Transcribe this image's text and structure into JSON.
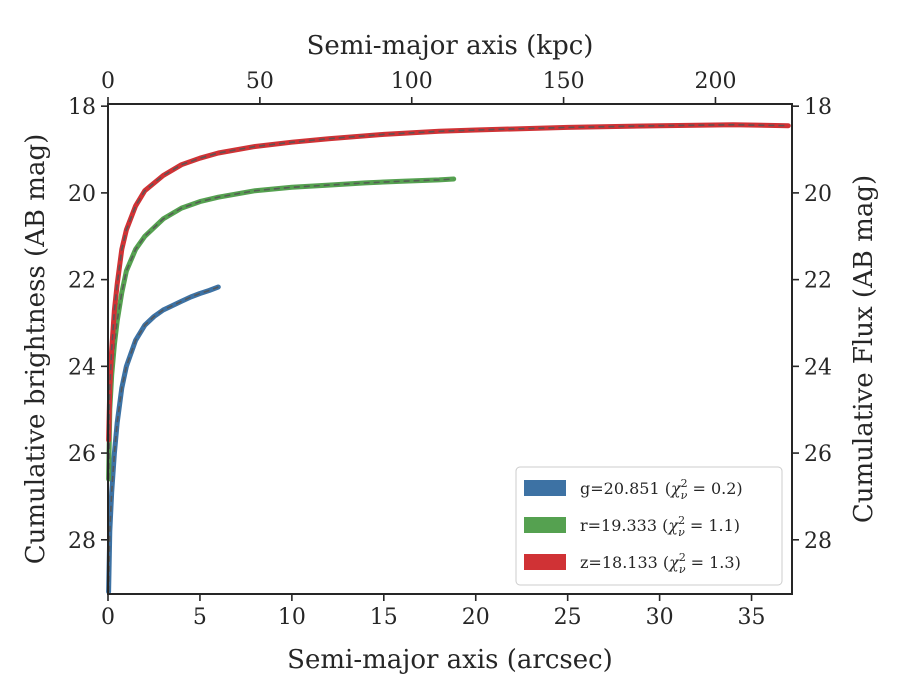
{
  "chart_data": {
    "type": "line",
    "xlabel": "Semi-major axis (arcsec)",
    "ylabel": "Cumulative brightness (AB mag)",
    "top_xlabel": "Semi-major axis (kpc)",
    "right_ylabel": "Cumulative Flux (AB mag)",
    "xlim": [
      0,
      37.2
    ],
    "ylim": [
      29.25,
      17.95
    ],
    "y_inverted": true,
    "top_xlim": [
      0,
      225.2
    ],
    "xticks": [
      0,
      5,
      10,
      15,
      20,
      25,
      30,
      35
    ],
    "yticks": [
      18,
      20,
      22,
      24,
      26,
      28
    ],
    "top_xticks": [
      0,
      50,
      100,
      150,
      200
    ],
    "grid": false,
    "legend_position": "lower-right",
    "series": [
      {
        "name": "g=20.851",
        "chi_label": "χ",
        "chi_sup": "2",
        "chi_sub": "ν",
        "chi_value": " = 0.2)",
        "color": "#3d72a4",
        "x": [
          0.03,
          0.1,
          0.2,
          0.35,
          0.5,
          0.75,
          1.0,
          1.5,
          2.0,
          2.5,
          3.0,
          3.5,
          4.0,
          4.5,
          5.0,
          5.5,
          6.0
        ],
        "y": [
          29.2,
          27.8,
          26.9,
          26.0,
          25.3,
          24.5,
          24.0,
          23.4,
          23.05,
          22.85,
          22.7,
          22.6,
          22.5,
          22.4,
          22.32,
          22.25,
          22.17
        ]
      },
      {
        "name": "r=19.333",
        "chi_label": "χ",
        "chi_sup": "2",
        "chi_sub": "ν",
        "chi_value": " = 1.1)",
        "color": "#55a150",
        "x": [
          0.03,
          0.1,
          0.2,
          0.35,
          0.5,
          0.75,
          1.0,
          1.5,
          2.0,
          3.0,
          4.0,
          5.0,
          6.0,
          8.0,
          10.0,
          12.0,
          14.0,
          16.0,
          18.0,
          18.8
        ],
        "y": [
          26.6,
          25.0,
          24.2,
          23.5,
          22.95,
          22.3,
          21.8,
          21.3,
          21.0,
          20.6,
          20.35,
          20.2,
          20.1,
          19.95,
          19.87,
          19.82,
          19.77,
          19.73,
          19.7,
          19.68
        ]
      },
      {
        "name": "z=18.133",
        "chi_label": "χ",
        "chi_sup": "2",
        "chi_sub": "ν",
        "chi_value": " = 1.3)",
        "color": "#d03235",
        "x": [
          0.03,
          0.1,
          0.2,
          0.35,
          0.5,
          0.75,
          1.0,
          1.5,
          2.0,
          3.0,
          4.0,
          5.0,
          6.0,
          8.0,
          10.0,
          12.0,
          15.0,
          18.0,
          20.0,
          25.0,
          30.0,
          34.0,
          37.0
        ],
        "y": [
          25.7,
          24.5,
          23.6,
          22.7,
          22.1,
          21.3,
          20.85,
          20.3,
          19.95,
          19.6,
          19.35,
          19.2,
          19.08,
          18.93,
          18.83,
          18.75,
          18.65,
          18.58,
          18.55,
          18.49,
          18.45,
          18.43,
          18.45
        ]
      }
    ],
    "model_line_color": "#555555"
  }
}
